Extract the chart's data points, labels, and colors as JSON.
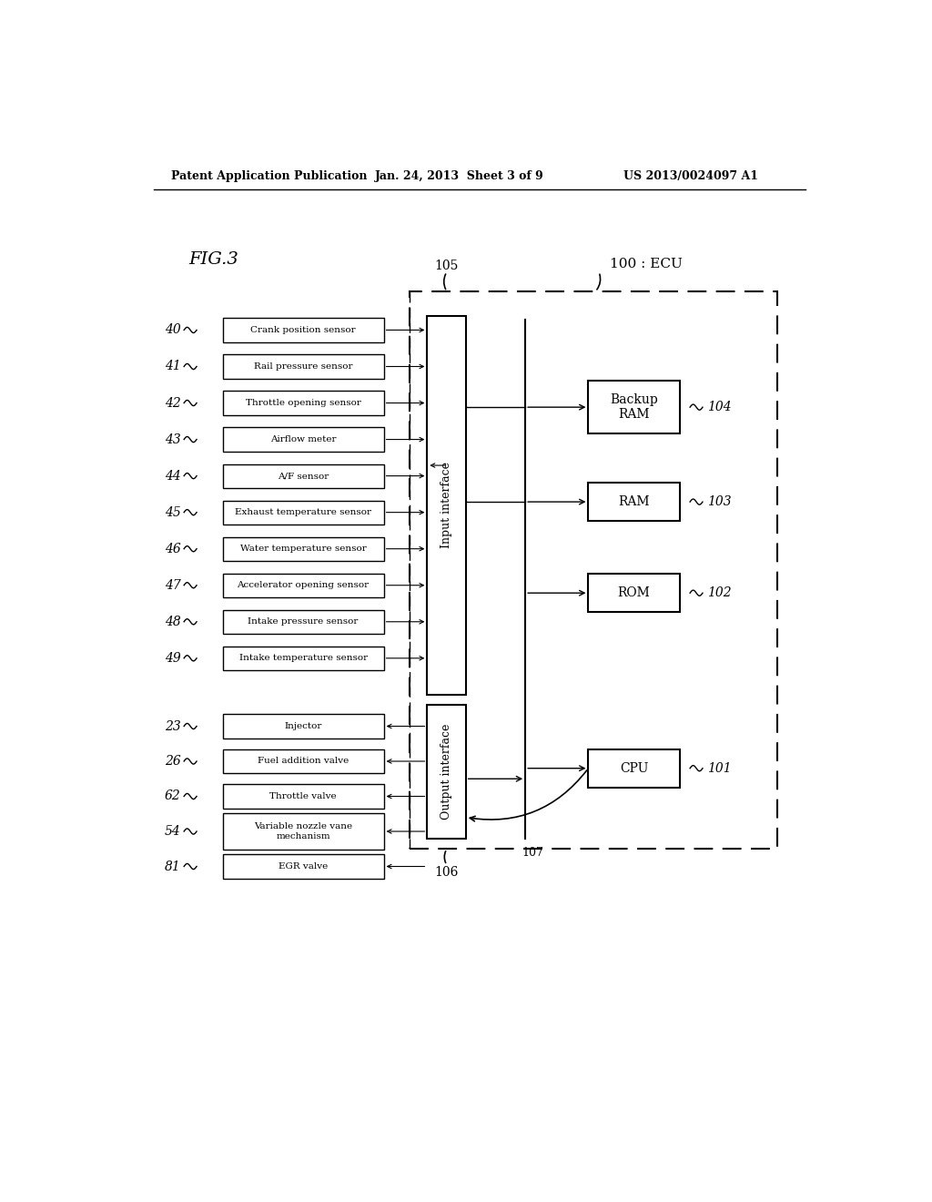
{
  "header_left": "Patent Application Publication",
  "header_center": "Jan. 24, 2013  Sheet 3 of 9",
  "header_right": "US 2013/0024097 A1",
  "fig_label": "FIG.3",
  "ecu_label": "100 : ECU",
  "input_sensors": [
    {
      "num": "40",
      "label": "Crank position sensor"
    },
    {
      "num": "41",
      "label": "Rail pressure sensor"
    },
    {
      "num": "42",
      "label": "Throttle opening sensor"
    },
    {
      "num": "43",
      "label": "Airflow meter"
    },
    {
      "num": "44",
      "label": "A/F sensor"
    },
    {
      "num": "45",
      "label": "Exhaust temperature sensor"
    },
    {
      "num": "46",
      "label": "Water temperature sensor"
    },
    {
      "num": "47",
      "label": "Accelerator opening sensor"
    },
    {
      "num": "48",
      "label": "Intake pressure sensor"
    },
    {
      "num": "49",
      "label": "Intake temperature sensor"
    }
  ],
  "output_actuators": [
    {
      "num": "23",
      "label": "Injector"
    },
    {
      "num": "26",
      "label": "Fuel addition valve"
    },
    {
      "num": "62",
      "label": "Throttle valve"
    },
    {
      "num": "54",
      "label": "Variable nozzle vane\nmechanism"
    },
    {
      "num": "81",
      "label": "EGR valve"
    }
  ],
  "ecu_boxes": [
    {
      "num": "104",
      "label": "Backup\nRAM"
    },
    {
      "num": "103",
      "label": "RAM"
    },
    {
      "num": "102",
      "label": "ROM"
    },
    {
      "num": "101",
      "label": "CPU"
    }
  ],
  "label_105": "105",
  "label_106": "106",
  "label_107": "107",
  "bg_color": "#ffffff",
  "line_color": "#000000"
}
